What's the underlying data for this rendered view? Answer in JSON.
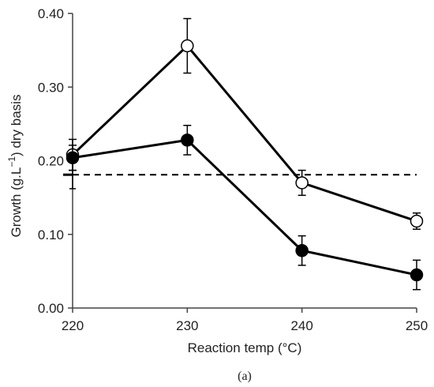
{
  "chart_data": {
    "type": "line",
    "xlabel": "Reaction temp (°C)",
    "ylabel_prefix": "Growth (g.L",
    "ylabel_sup": "−1",
    "ylabel_suffix": ") dry basis",
    "caption": "(a)",
    "x": [
      220,
      230,
      240,
      250
    ],
    "xticks": [
      "220",
      "230",
      "240",
      "250"
    ],
    "yticks": [
      "0.00",
      "0.10",
      "0.20",
      "0.30",
      "0.40"
    ],
    "xlim": [
      220,
      250
    ],
    "ylim": [
      0,
      0.4
    ],
    "grid": false,
    "series": [
      {
        "marker": "open-circle",
        "values": [
          0.208,
          0.356,
          0.17,
          0.118
        ],
        "errors": [
          0.021,
          0.037,
          0.017,
          0.011
        ]
      },
      {
        "marker": "filled-circle",
        "values": [
          0.204,
          0.228,
          0.078,
          0.045
        ],
        "errors": [
          0.017,
          0.02,
          0.02,
          0.02
        ]
      }
    ],
    "reference_line": {
      "style": "dashed",
      "value": 0.181,
      "error": 0.019
    }
  }
}
